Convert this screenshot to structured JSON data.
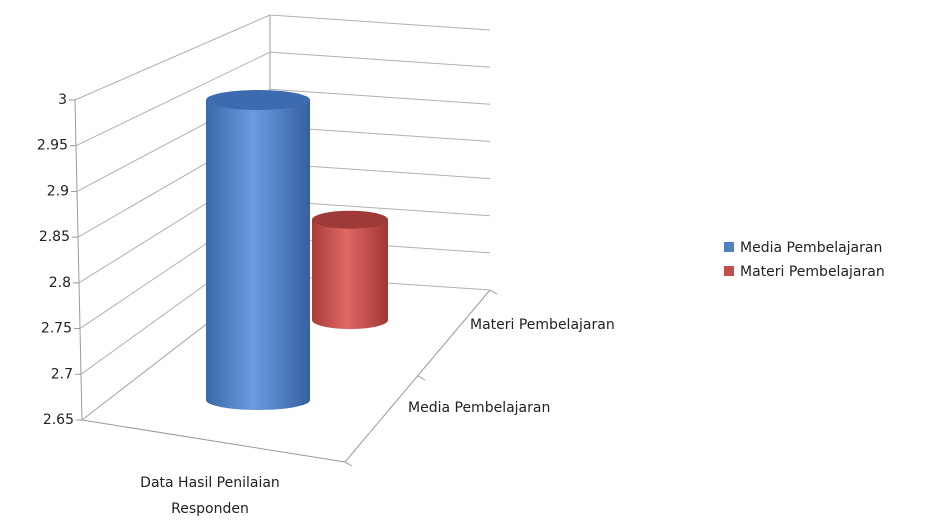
{
  "chart_data": {
    "type": "bar3d",
    "categories": [
      "Data Hasil Penilaian Responden"
    ],
    "series": [
      {
        "name": "Media Pembelajaran",
        "color": "#4f81bd",
        "values": [
          3.0
        ]
      },
      {
        "name": "Materi Pembelajaran",
        "color": "#c0504d",
        "values": [
          2.78
        ]
      }
    ],
    "ylim": [
      2.65,
      3
    ],
    "yticks": [
      2.65,
      2.7,
      2.75,
      2.8,
      2.85,
      2.9,
      2.95,
      3
    ],
    "grid": true,
    "legend": "right"
  }
}
